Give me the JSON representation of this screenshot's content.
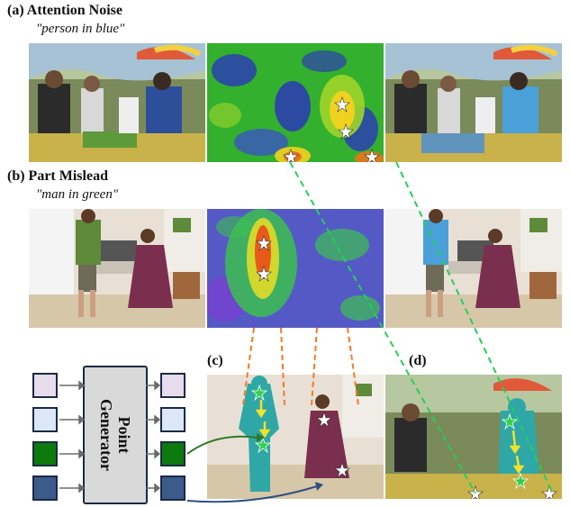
{
  "section_a": {
    "title": "(a) Attention Noise",
    "query": "″person in blue″"
  },
  "section_b": {
    "title": "(b) Part Mislead",
    "query": "″man in green″"
  },
  "panel_c_label": "(c)",
  "panel_d_label": "(d)",
  "point_generator": {
    "line1": "Point",
    "line2": "Generator"
  },
  "colors": {
    "token_input_1": "#e6dcec",
    "token_input_2": "#dce8f8",
    "token_input_3": "#0d7a0d",
    "token_input_4": "#3c5a8a",
    "green_arrow": "#2b7a2b",
    "blue_arrow": "#2f4f86",
    "orange_dash": "#f07a2a",
    "green_dash": "#22d05a",
    "mask_teal": "#2fa7a7"
  },
  "icons": [
    "star-marker-icon",
    "arrow-right-icon"
  ]
}
